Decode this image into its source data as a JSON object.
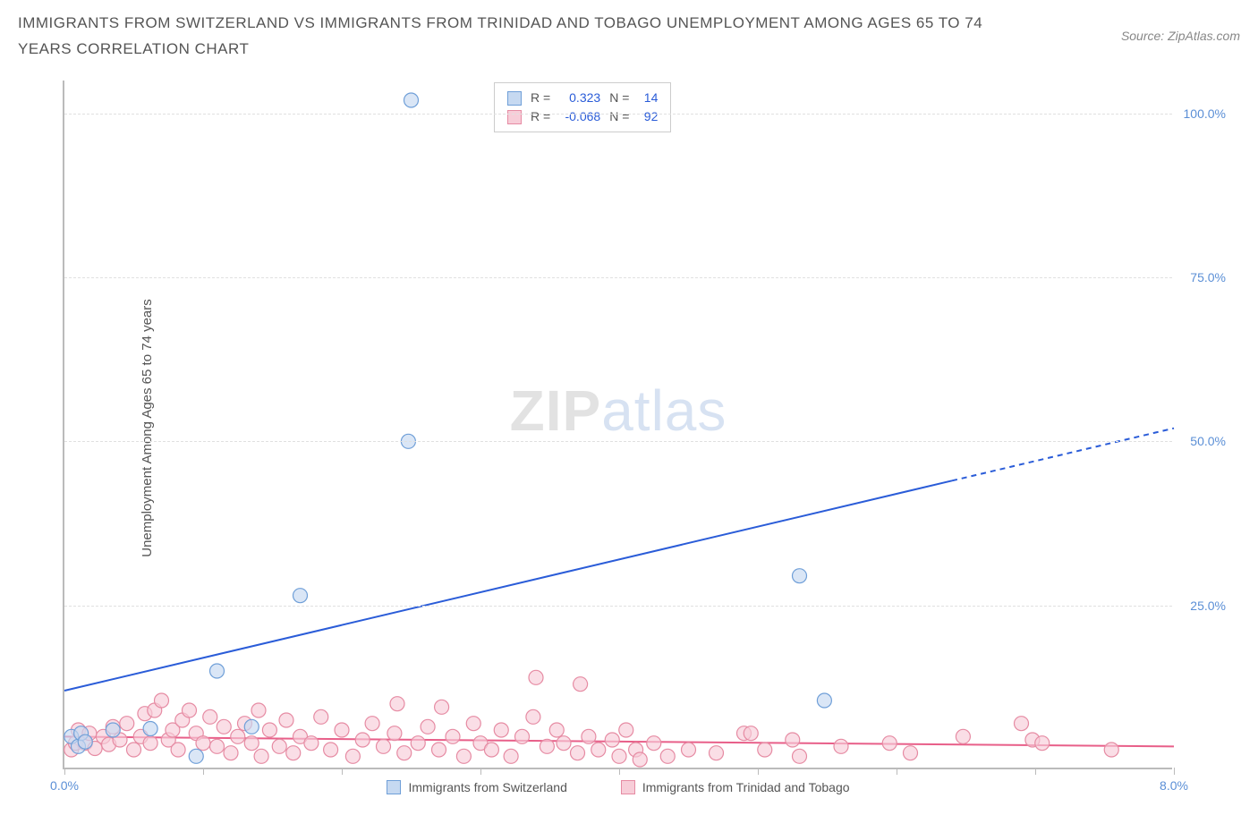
{
  "header": {
    "title": "IMMIGRANTS FROM SWITZERLAND VS IMMIGRANTS FROM TRINIDAD AND TOBAGO UNEMPLOYMENT AMONG AGES 65 TO 74 YEARS CORRELATION CHART",
    "source_prefix": "Source: ",
    "source_name": "ZipAtlas.com"
  },
  "chart": {
    "type": "scatter",
    "y_axis_label": "Unemployment Among Ages 65 to 74 years",
    "x_min": 0.0,
    "x_max": 8.0,
    "y_min": 0.0,
    "y_max": 105.0,
    "x_tick_label_left": "0.0%",
    "x_tick_label_right": "8.0%",
    "x_tick_positions": [
      0,
      1,
      2,
      3,
      4,
      5,
      6,
      7,
      8
    ],
    "y_ticks": [
      {
        "v": 25.0,
        "label": "25.0%"
      },
      {
        "v": 50.0,
        "label": "50.0%"
      },
      {
        "v": 75.0,
        "label": "75.0%"
      },
      {
        "v": 100.0,
        "label": "100.0%"
      }
    ],
    "grid_color": "#e0e0e0",
    "axis_color": "#bbbbbb",
    "background_color": "#ffffff",
    "watermark_zip": "ZIP",
    "watermark_atlas": "atlas",
    "series": [
      {
        "name": "Immigrants from Switzerland",
        "color_fill": "#c6d9f1",
        "color_stroke": "#6f9fd8",
        "color_line": "#2a5cd8",
        "r_value": "0.323",
        "n_value": "14",
        "marker_radius": 8,
        "trend": {
          "x1": 0.0,
          "y1": 12.0,
          "x2": 6.4,
          "y2": 44.0,
          "dash_from_x": 6.4,
          "x3": 8.0,
          "y3": 52.0
        },
        "points": [
          {
            "x": 0.05,
            "y": 5.0
          },
          {
            "x": 0.1,
            "y": 3.5
          },
          {
            "x": 0.12,
            "y": 5.5
          },
          {
            "x": 0.15,
            "y": 4.2
          },
          {
            "x": 0.35,
            "y": 6.0
          },
          {
            "x": 0.62,
            "y": 6.2
          },
          {
            "x": 0.95,
            "y": 2.0
          },
          {
            "x": 1.1,
            "y": 15.0
          },
          {
            "x": 1.35,
            "y": 6.5
          },
          {
            "x": 1.7,
            "y": 26.5
          },
          {
            "x": 2.48,
            "y": 50.0
          },
          {
            "x": 2.5,
            "y": 102.0
          },
          {
            "x": 5.3,
            "y": 29.5
          },
          {
            "x": 5.48,
            "y": 10.5
          }
        ]
      },
      {
        "name": "Immigrants from Trinidad and Tobago",
        "color_fill": "#f7cdd8",
        "color_stroke": "#e68ba3",
        "color_line": "#e85f89",
        "r_value": "-0.068",
        "n_value": "92",
        "marker_radius": 8,
        "trend": {
          "x1": 0.0,
          "y1": 5.0,
          "x2": 8.0,
          "y2": 3.5,
          "dash_from_x": 8.0,
          "x3": 8.0,
          "y3": 3.5
        },
        "points": [
          {
            "x": 0.05,
            "y": 3.0
          },
          {
            "x": 0.08,
            "y": 4.0
          },
          {
            "x": 0.1,
            "y": 6.0
          },
          {
            "x": 0.15,
            "y": 4.0
          },
          {
            "x": 0.18,
            "y": 5.5
          },
          {
            "x": 0.22,
            "y": 3.2
          },
          {
            "x": 0.28,
            "y": 5.0
          },
          {
            "x": 0.32,
            "y": 3.8
          },
          {
            "x": 0.35,
            "y": 6.5
          },
          {
            "x": 0.4,
            "y": 4.5
          },
          {
            "x": 0.45,
            "y": 7.0
          },
          {
            "x": 0.5,
            "y": 3.0
          },
          {
            "x": 0.55,
            "y": 5.0
          },
          {
            "x": 0.58,
            "y": 8.5
          },
          {
            "x": 0.62,
            "y": 4.0
          },
          {
            "x": 0.65,
            "y": 9.0
          },
          {
            "x": 0.7,
            "y": 10.5
          },
          {
            "x": 0.75,
            "y": 4.5
          },
          {
            "x": 0.78,
            "y": 6.0
          },
          {
            "x": 0.82,
            "y": 3.0
          },
          {
            "x": 0.85,
            "y": 7.5
          },
          {
            "x": 0.9,
            "y": 9.0
          },
          {
            "x": 0.95,
            "y": 5.5
          },
          {
            "x": 1.0,
            "y": 4.0
          },
          {
            "x": 1.05,
            "y": 8.0
          },
          {
            "x": 1.1,
            "y": 3.5
          },
          {
            "x": 1.15,
            "y": 6.5
          },
          {
            "x": 1.2,
            "y": 2.5
          },
          {
            "x": 1.25,
            "y": 5.0
          },
          {
            "x": 1.3,
            "y": 7.0
          },
          {
            "x": 1.35,
            "y": 4.0
          },
          {
            "x": 1.4,
            "y": 9.0
          },
          {
            "x": 1.42,
            "y": 2.0
          },
          {
            "x": 1.48,
            "y": 6.0
          },
          {
            "x": 1.55,
            "y": 3.5
          },
          {
            "x": 1.6,
            "y": 7.5
          },
          {
            "x": 1.65,
            "y": 2.5
          },
          {
            "x": 1.7,
            "y": 5.0
          },
          {
            "x": 1.78,
            "y": 4.0
          },
          {
            "x": 1.85,
            "y": 8.0
          },
          {
            "x": 1.92,
            "y": 3.0
          },
          {
            "x": 2.0,
            "y": 6.0
          },
          {
            "x": 2.08,
            "y": 2.0
          },
          {
            "x": 2.15,
            "y": 4.5
          },
          {
            "x": 2.22,
            "y": 7.0
          },
          {
            "x": 2.3,
            "y": 3.5
          },
          {
            "x": 2.38,
            "y": 5.5
          },
          {
            "x": 2.4,
            "y": 10.0
          },
          {
            "x": 2.45,
            "y": 2.5
          },
          {
            "x": 2.55,
            "y": 4.0
          },
          {
            "x": 2.62,
            "y": 6.5
          },
          {
            "x": 2.7,
            "y": 3.0
          },
          {
            "x": 2.72,
            "y": 9.5
          },
          {
            "x": 2.8,
            "y": 5.0
          },
          {
            "x": 2.88,
            "y": 2.0
          },
          {
            "x": 2.95,
            "y": 7.0
          },
          {
            "x": 3.0,
            "y": 4.0
          },
          {
            "x": 3.08,
            "y": 3.0
          },
          {
            "x": 3.15,
            "y": 6.0
          },
          {
            "x": 3.22,
            "y": 2.0
          },
          {
            "x": 3.3,
            "y": 5.0
          },
          {
            "x": 3.38,
            "y": 8.0
          },
          {
            "x": 3.4,
            "y": 14.0
          },
          {
            "x": 3.48,
            "y": 3.5
          },
          {
            "x": 3.55,
            "y": 6.0
          },
          {
            "x": 3.6,
            "y": 4.0
          },
          {
            "x": 3.7,
            "y": 2.5
          },
          {
            "x": 3.72,
            "y": 13.0
          },
          {
            "x": 3.78,
            "y": 5.0
          },
          {
            "x": 3.85,
            "y": 3.0
          },
          {
            "x": 3.95,
            "y": 4.5
          },
          {
            "x": 4.0,
            "y": 2.0
          },
          {
            "x": 4.05,
            "y": 6.0
          },
          {
            "x": 4.12,
            "y": 3.0
          },
          {
            "x": 4.15,
            "y": 1.5
          },
          {
            "x": 4.25,
            "y": 4.0
          },
          {
            "x": 4.35,
            "y": 2.0
          },
          {
            "x": 4.5,
            "y": 3.0
          },
          {
            "x": 4.7,
            "y": 2.5
          },
          {
            "x": 4.9,
            "y": 5.5
          },
          {
            "x": 4.95,
            "y": 5.5
          },
          {
            "x": 5.05,
            "y": 3.0
          },
          {
            "x": 5.25,
            "y": 4.5
          },
          {
            "x": 5.3,
            "y": 2.0
          },
          {
            "x": 5.6,
            "y": 3.5
          },
          {
            "x": 5.95,
            "y": 4.0
          },
          {
            "x": 6.1,
            "y": 2.5
          },
          {
            "x": 6.48,
            "y": 5.0
          },
          {
            "x": 6.9,
            "y": 7.0
          },
          {
            "x": 6.98,
            "y": 4.5
          },
          {
            "x": 7.05,
            "y": 4.0
          },
          {
            "x": 7.55,
            "y": 3.0
          }
        ]
      }
    ],
    "legend_labels": {
      "r_prefix": "R =",
      "n_prefix": "N ="
    },
    "bottom_legend": [
      {
        "swatch_fill": "#c6d9f1",
        "swatch_stroke": "#6f9fd8",
        "label": "Immigrants from Switzerland"
      },
      {
        "swatch_fill": "#f7cdd8",
        "swatch_stroke": "#e68ba3",
        "label": "Immigrants from Trinidad and Tobago"
      }
    ]
  }
}
